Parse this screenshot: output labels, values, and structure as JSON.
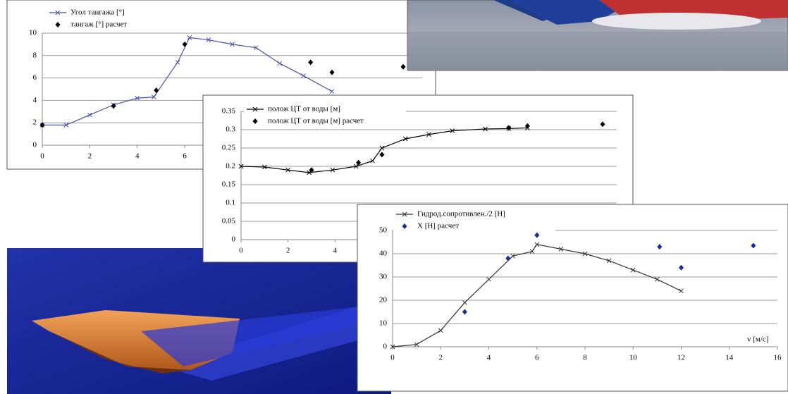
{
  "chart_data": [
    {
      "type": "line",
      "series": [
        {
          "name": "Угол тангажа [°]",
          "type": "line",
          "color": "#4a4fa8",
          "x": [
            0,
            1,
            2,
            3,
            4,
            4.7,
            5.7,
            6.2,
            7,
            8,
            9,
            10,
            11,
            12.2
          ],
          "values": [
            1.8,
            1.8,
            2.7,
            3.6,
            4.2,
            4.3,
            7.4,
            9.6,
            9.4,
            9.0,
            8.7,
            7.3,
            6.2,
            4.8
          ]
        },
        {
          "name": "тангаж [°] расчет",
          "type": "scatter",
          "color": "#000000",
          "x": [
            0,
            3,
            4.8,
            6,
            11.3,
            12.2,
            15.2
          ],
          "values": [
            1.8,
            3.5,
            4.9,
            9.0,
            7.4,
            6.5,
            7.0
          ]
        }
      ],
      "xlim": [
        0,
        16
      ],
      "xticks": [
        0,
        2,
        4,
        6
      ],
      "ylim": [
        0,
        10
      ],
      "yticks": [
        0,
        2,
        4,
        6,
        8,
        10
      ],
      "grid": true
    },
    {
      "type": "line",
      "series": [
        {
          "name": "полож ЦТ от воды [м]",
          "type": "line",
          "color": "#000000",
          "x": [
            0,
            1,
            2,
            2.9,
            3.9,
            4.9,
            5.6,
            6,
            7,
            8,
            9,
            10.4,
            11.4,
            12.2
          ],
          "values": [
            0.2,
            0.198,
            0.19,
            0.183,
            0.19,
            0.2,
            0.215,
            0.25,
            0.275,
            0.287,
            0.297,
            0.302,
            0.303,
            0.305
          ]
        },
        {
          "name": "полож ЦТ от воды [м] расчет",
          "type": "scatter",
          "color": "#000000",
          "x": [
            3,
            5,
            6,
            11.4,
            12.2,
            15.4
          ],
          "values": [
            0.19,
            0.21,
            0.232,
            0.305,
            0.31,
            0.315
          ]
        }
      ],
      "xlim": [
        0,
        16
      ],
      "xticks": [
        0,
        2,
        4
      ],
      "ylim": [
        0,
        0.35
      ],
      "yticks": [
        0,
        0.05,
        0.1,
        0.15,
        0.2,
        0.25,
        0.3,
        0.35
      ],
      "grid": true
    },
    {
      "type": "line",
      "series": [
        {
          "name": "Гидрод.сопротивлен./2 [Н]",
          "type": "line",
          "color": "#333333",
          "x": [
            0,
            1,
            2,
            3,
            4,
            5,
            5.8,
            6,
            7,
            8,
            9,
            10,
            11,
            12
          ],
          "values": [
            0,
            1,
            7,
            19,
            29,
            39,
            41,
            44,
            42,
            40,
            37,
            33,
            29,
            24
          ]
        },
        {
          "name": "X [Н] расчет",
          "type": "scatter",
          "color": "#1a2a9a",
          "x": [
            3,
            4.8,
            6,
            11.1,
            12,
            15
          ],
          "values": [
            15,
            38,
            48,
            43,
            34,
            43.5
          ]
        }
      ],
      "annotation": "v [м/с]",
      "xlim": [
        0,
        16
      ],
      "xticks": [
        0,
        2,
        4,
        6,
        8,
        10,
        12,
        14,
        16
      ],
      "ylim": [
        0,
        50
      ],
      "yticks": [
        0,
        10,
        20,
        30,
        40,
        50
      ],
      "grid": true
    }
  ]
}
